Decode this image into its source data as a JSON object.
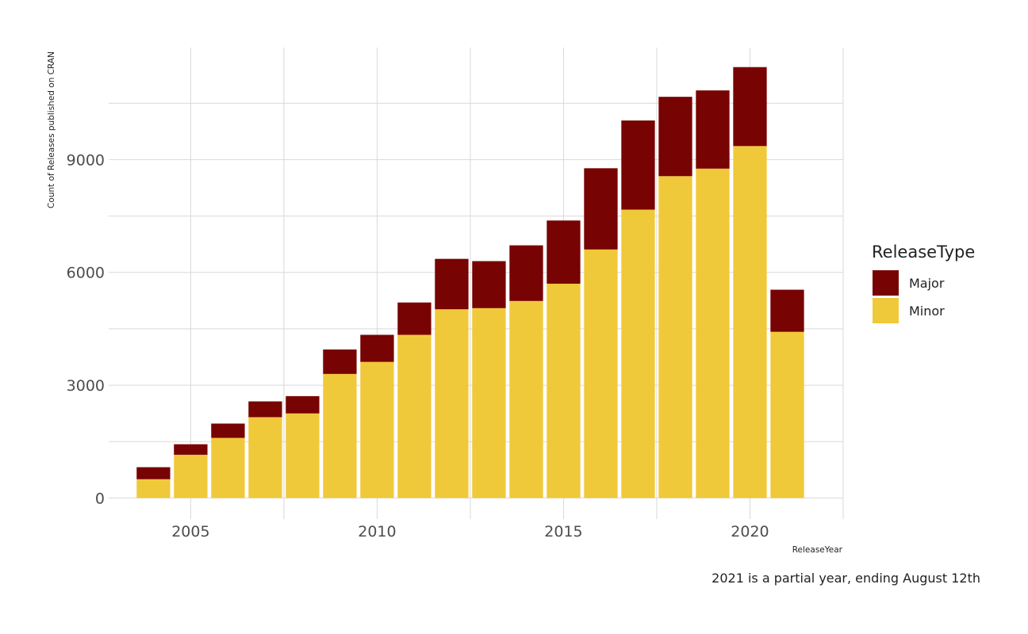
{
  "chart_data": {
    "type": "bar",
    "stacked": true,
    "x": [
      2004,
      2005,
      2006,
      2007,
      2008,
      2009,
      2010,
      2011,
      2012,
      2013,
      2014,
      2015,
      2016,
      2017,
      2018,
      2019,
      2020,
      2021
    ],
    "series": [
      {
        "name": "Minor",
        "color": "#f0c93a",
        "values": [
          500,
          1150,
          1600,
          2150,
          2250,
          3300,
          3620,
          4340,
          5020,
          5050,
          5240,
          5700,
          6610,
          7670,
          8560,
          8760,
          9360,
          4420
        ]
      },
      {
        "name": "Major",
        "color": "#780303",
        "values": [
          320,
          280,
          380,
          420,
          460,
          650,
          720,
          860,
          1340,
          1250,
          1480,
          1680,
          2160,
          2370,
          2110,
          2080,
          2100,
          1120
        ]
      }
    ],
    "xlabel": "ReleaseYear",
    "ylabel": "Count of Releases published on CRAN",
    "xticks": [
      "2005",
      "2010",
      "2015",
      "2020"
    ],
    "yticks": [
      "0",
      "3000",
      "6000",
      "9000"
    ],
    "xlim": [
      2002.8,
      2022.5
    ],
    "ylim": [
      -560,
      11980
    ],
    "legend_title": "ReleaseType",
    "legend_position": "right",
    "grid": true,
    "caption": "2021 is a partial year, ending August 12th"
  }
}
